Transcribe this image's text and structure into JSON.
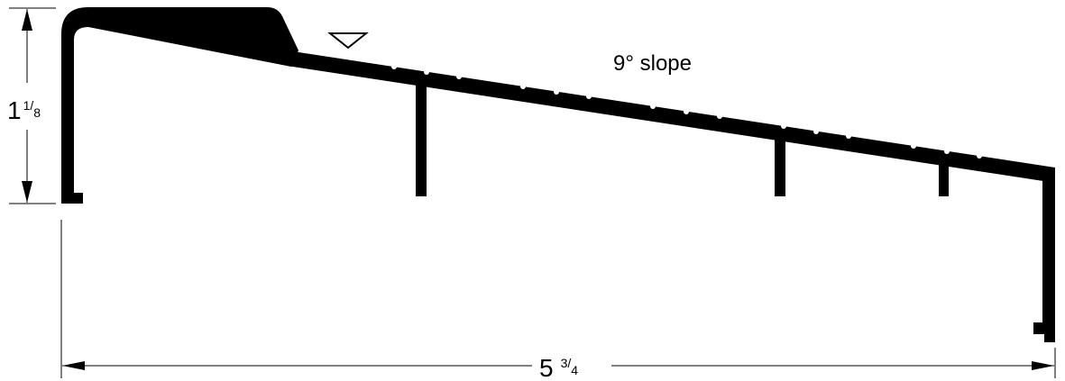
{
  "drawing": {
    "slope_label": "9° slope",
    "height_whole": "1",
    "height_num": "1",
    "height_den": "8",
    "width_whole": "5",
    "width_num": "3",
    "width_den": "4",
    "colors": {
      "ink": "#000000",
      "background": "#ffffff"
    },
    "icons": [
      "water-level-triangle-icon",
      "dimension-arrow-icon"
    ]
  }
}
